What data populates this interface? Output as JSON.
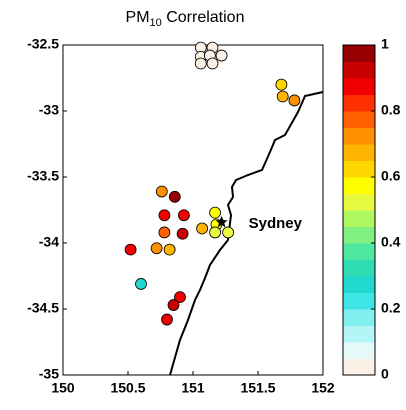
{
  "chart_data": {
    "type": "scatter",
    "title": {
      "text": "PM",
      "subscript": "10",
      "after": " Correlation"
    },
    "xlim": [
      150,
      152
    ],
    "ylim": [
      -35,
      -32.5
    ],
    "xticks": [
      150,
      150.5,
      151,
      151.5,
      152
    ],
    "yticks": [
      -35,
      -34.5,
      -34,
      -33.5,
      -33,
      -32.5
    ],
    "colorbar": {
      "lim": [
        0,
        1
      ],
      "ticks": [
        0,
        0.2,
        0.4,
        0.6,
        0.8,
        1
      ],
      "colors": [
        "#faf0e6",
        "#e6fafa",
        "#b4f5f5",
        "#80f0f0",
        "#40e6e6",
        "#20d8d0",
        "#30dcb4",
        "#50e8a0",
        "#80f080",
        "#b0f860",
        "#e8fa40",
        "#ffff00",
        "#ffd700",
        "#ffb400",
        "#ff9000",
        "#ff6000",
        "#ff3000",
        "#f00000",
        "#c80000",
        "#960000"
      ]
    },
    "x": [
      151.06,
      151.15,
      151.06,
      151.13,
      151.22,
      151.06,
      151.15,
      151.68,
      151.69,
      151.78,
      150.76,
      150.86,
      150.78,
      150.93,
      150.78,
      150.92,
      150.52,
      150.72,
      150.82,
      151.07,
      151.17,
      151.18,
      151.17,
      151.27,
      150.6,
      150.9,
      150.85,
      150.8
    ],
    "y": [
      -32.52,
      -32.52,
      -32.59,
      -32.58,
      -32.58,
      -32.64,
      -32.64,
      -32.8,
      -32.89,
      -32.92,
      -33.61,
      -33.65,
      -33.79,
      -33.79,
      -33.92,
      -33.93,
      -34.05,
      -34.04,
      -34.05,
      -33.89,
      -33.77,
      -33.86,
      -33.92,
      -33.92,
      -34.31,
      -34.41,
      -34.47,
      -34.58
    ],
    "values": [
      0.02,
      0.02,
      0.02,
      0.02,
      0.02,
      0.02,
      0.02,
      0.6,
      0.65,
      0.7,
      0.7,
      0.95,
      0.85,
      0.85,
      0.75,
      0.9,
      0.85,
      0.7,
      0.65,
      0.65,
      0.55,
      0.55,
      0.5,
      0.5,
      0.28,
      0.85,
      0.9,
      0.85
    ],
    "marker": {
      "label": "Sydney",
      "x": 151.22,
      "y": -33.84
    }
  }
}
